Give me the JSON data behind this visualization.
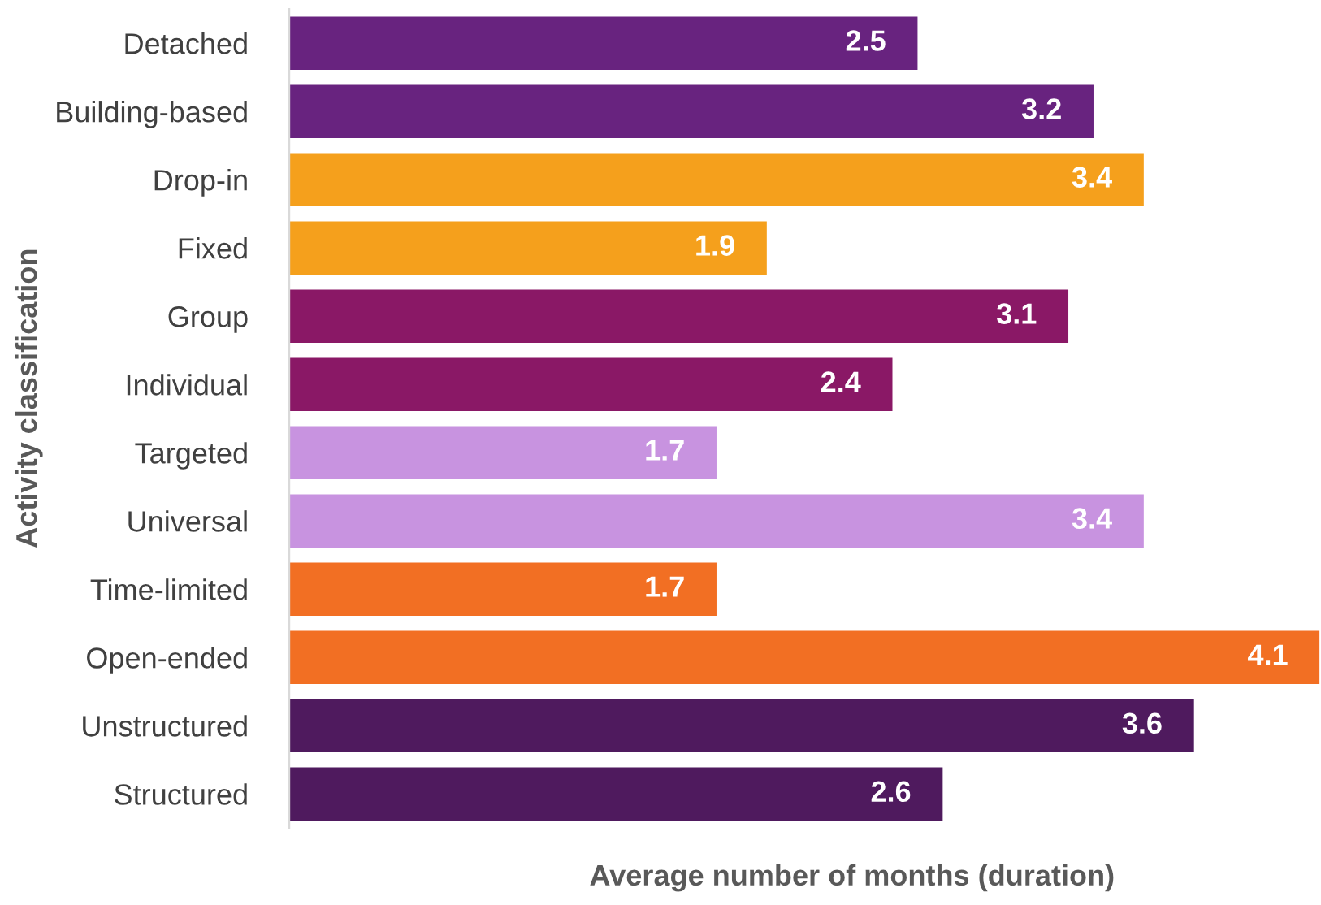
{
  "chart_data": {
    "type": "bar",
    "orientation": "horizontal",
    "xlabel": "Average number of months (duration)",
    "ylabel": "Activity classification",
    "categories": [
      "Detached",
      "Building-based",
      "Drop-in",
      "Fixed",
      "Group",
      "Individual",
      "Targeted",
      "Universal",
      "Time-limited",
      "Open-ended",
      "Unstructured",
      "Structured"
    ],
    "values": [
      2.5,
      3.2,
      3.4,
      1.9,
      3.1,
      2.4,
      1.7,
      3.4,
      1.7,
      4.1,
      3.6,
      2.6
    ],
    "colors": [
      "#68237f",
      "#68237f",
      "#f5a01c",
      "#f5a01c",
      "#8a1866",
      "#8a1866",
      "#c893e0",
      "#c893e0",
      "#f26f23",
      "#f26f23",
      "#4f1a5e",
      "#4f1a5e"
    ],
    "data_labels": true,
    "grid": false,
    "legend": false
  }
}
